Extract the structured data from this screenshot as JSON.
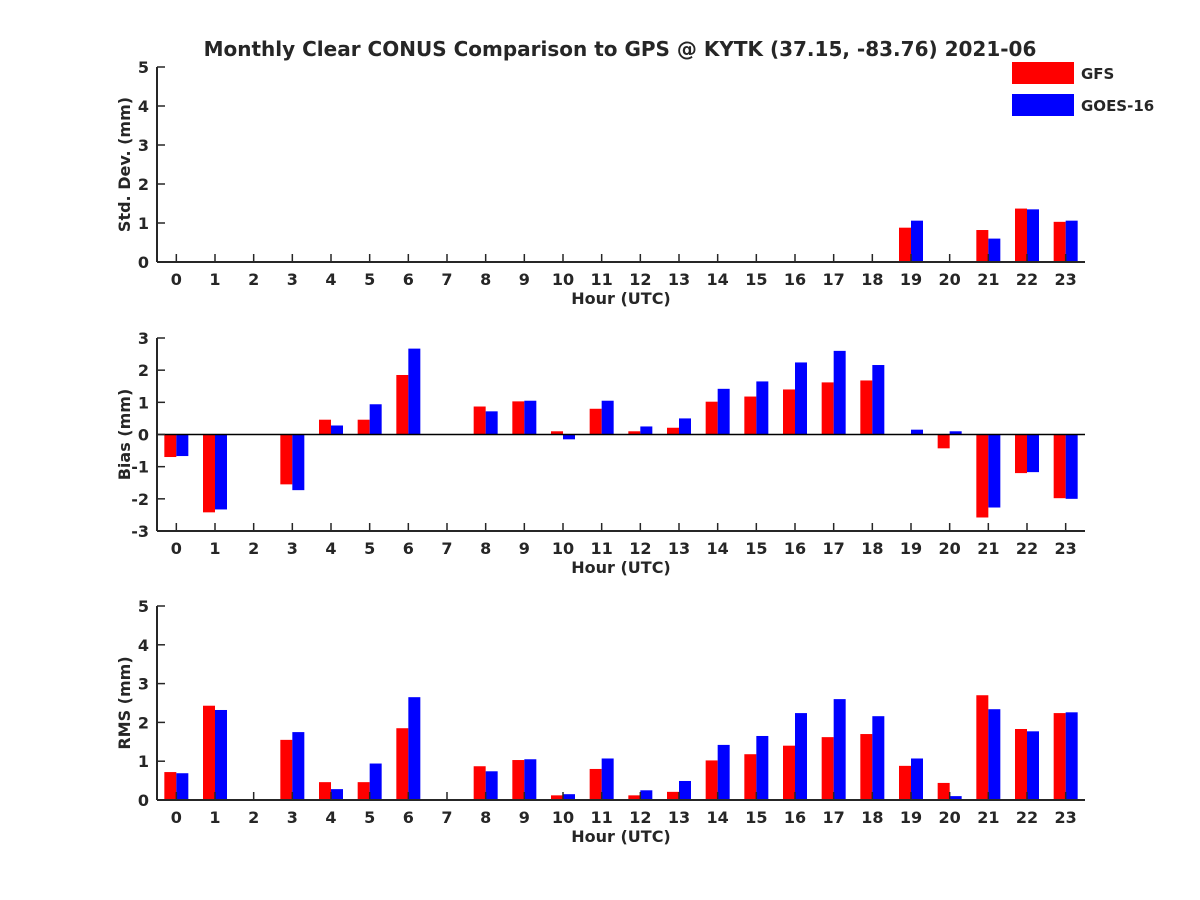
{
  "title": "Monthly Clear CONUS Comparison to GPS @ KYTK (37.15, -83.76) 2021-06",
  "legend": {
    "placement": "top-right",
    "entries": [
      {
        "name": "GFS",
        "color": "#ff0000"
      },
      {
        "name": "GOES-16",
        "color": "#0000ff"
      }
    ]
  },
  "chart_data": [
    {
      "type": "bar",
      "xlabel": "Hour (UTC)",
      "ylabel": "Std. Dev. (mm)",
      "ylim": [
        0,
        5
      ],
      "yticks": [
        0,
        1,
        2,
        3,
        4,
        5
      ],
      "categories": [
        "0",
        "1",
        "2",
        "3",
        "4",
        "5",
        "6",
        "7",
        "8",
        "9",
        "10",
        "11",
        "12",
        "13",
        "14",
        "15",
        "16",
        "17",
        "18",
        "19",
        "20",
        "21",
        "22",
        "23"
      ],
      "series": [
        {
          "name": "GFS",
          "color": "#ff0000",
          "values": [
            0,
            0,
            null,
            0,
            0,
            0,
            0,
            null,
            0,
            0,
            0,
            0,
            0,
            0,
            0,
            0,
            0,
            0,
            0,
            0.88,
            null,
            0.82,
            1.37,
            1.03
          ]
        },
        {
          "name": "GOES-16",
          "color": "#0000ff",
          "values": [
            0,
            0,
            null,
            0,
            0,
            0,
            0,
            null,
            0,
            0,
            0,
            0,
            0,
            0,
            0,
            0,
            0,
            0,
            0,
            1.06,
            null,
            0.6,
            1.35,
            1.06
          ]
        }
      ]
    },
    {
      "type": "bar",
      "xlabel": "Hour (UTC)",
      "ylabel": "Bias (mm)",
      "ylim": [
        -3,
        3
      ],
      "yticks": [
        -3,
        -2,
        -1,
        0,
        1,
        2,
        3
      ],
      "categories": [
        "0",
        "1",
        "2",
        "3",
        "4",
        "5",
        "6",
        "7",
        "8",
        "9",
        "10",
        "11",
        "12",
        "13",
        "14",
        "15",
        "16",
        "17",
        "18",
        "19",
        "20",
        "21",
        "22",
        "23"
      ],
      "series": [
        {
          "name": "GFS",
          "color": "#ff0000",
          "values": [
            -0.7,
            -2.42,
            null,
            -1.55,
            0.46,
            0.46,
            1.85,
            null,
            0.87,
            1.03,
            0.1,
            0.8,
            0.1,
            0.21,
            1.02,
            1.18,
            1.4,
            1.62,
            1.68,
            0,
            -0.43,
            -2.58,
            -1.2,
            -1.98
          ]
        },
        {
          "name": "GOES-16",
          "color": "#0000ff",
          "values": [
            -0.67,
            -2.33,
            null,
            -1.73,
            0.28,
            0.94,
            2.67,
            null,
            0.72,
            1.05,
            -0.15,
            1.05,
            0.25,
            0.5,
            1.42,
            1.65,
            2.24,
            2.6,
            2.16,
            0.15,
            0.1,
            -2.27,
            -1.17,
            -2.0
          ]
        }
      ]
    },
    {
      "type": "bar",
      "xlabel": "Hour (UTC)",
      "ylabel": "RMS (mm)",
      "ylim": [
        0,
        5
      ],
      "yticks": [
        0,
        1,
        2,
        3,
        4,
        5
      ],
      "categories": [
        "0",
        "1",
        "2",
        "3",
        "4",
        "5",
        "6",
        "7",
        "8",
        "9",
        "10",
        "11",
        "12",
        "13",
        "14",
        "15",
        "16",
        "17",
        "18",
        "19",
        "20",
        "21",
        "22",
        "23"
      ],
      "series": [
        {
          "name": "GFS",
          "color": "#ff0000",
          "values": [
            0.72,
            2.43,
            null,
            1.55,
            0.46,
            0.46,
            1.85,
            null,
            0.87,
            1.03,
            0.12,
            0.8,
            0.12,
            0.21,
            1.02,
            1.18,
            1.4,
            1.62,
            1.7,
            0.88,
            0.44,
            2.7,
            1.83,
            2.24
          ]
        },
        {
          "name": "GOES-16",
          "color": "#0000ff",
          "values": [
            0.69,
            2.32,
            null,
            1.75,
            0.28,
            0.94,
            2.65,
            null,
            0.74,
            1.05,
            0.15,
            1.07,
            0.25,
            0.49,
            1.42,
            1.65,
            2.24,
            2.6,
            2.16,
            1.07,
            0.1,
            2.34,
            1.77,
            2.26
          ]
        }
      ]
    }
  ]
}
